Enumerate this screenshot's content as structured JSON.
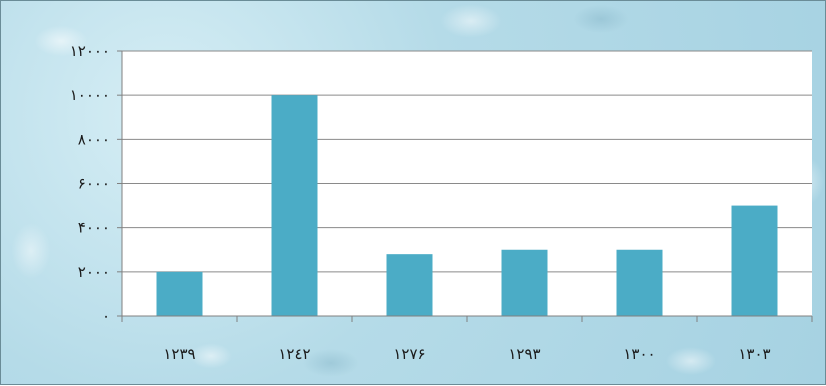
{
  "chart_data": {
    "type": "bar",
    "categories": [
      "١٢٣٩",
      "١٢٤٢",
      "١٢٧۶",
      "١٢٩٣",
      "١٣٠٠",
      "١٣٠٣"
    ],
    "values": [
      2000,
      10000,
      2800,
      3000,
      3000,
      5000
    ],
    "ylim": [
      0,
      12000
    ],
    "yticks": [
      0,
      2000,
      4000,
      6000,
      8000,
      10000,
      12000
    ],
    "ytick_labels": [
      "٠",
      "٢٠٠٠",
      "۴٠٠٠",
      "۶٠٠٠",
      "٨٠٠٠",
      "١٠٠٠٠",
      "١٢٠٠٠"
    ],
    "grid": true,
    "legend": "none",
    "bar_color": "#4bacc6",
    "title": "",
    "xlabel": "",
    "ylabel": ""
  }
}
